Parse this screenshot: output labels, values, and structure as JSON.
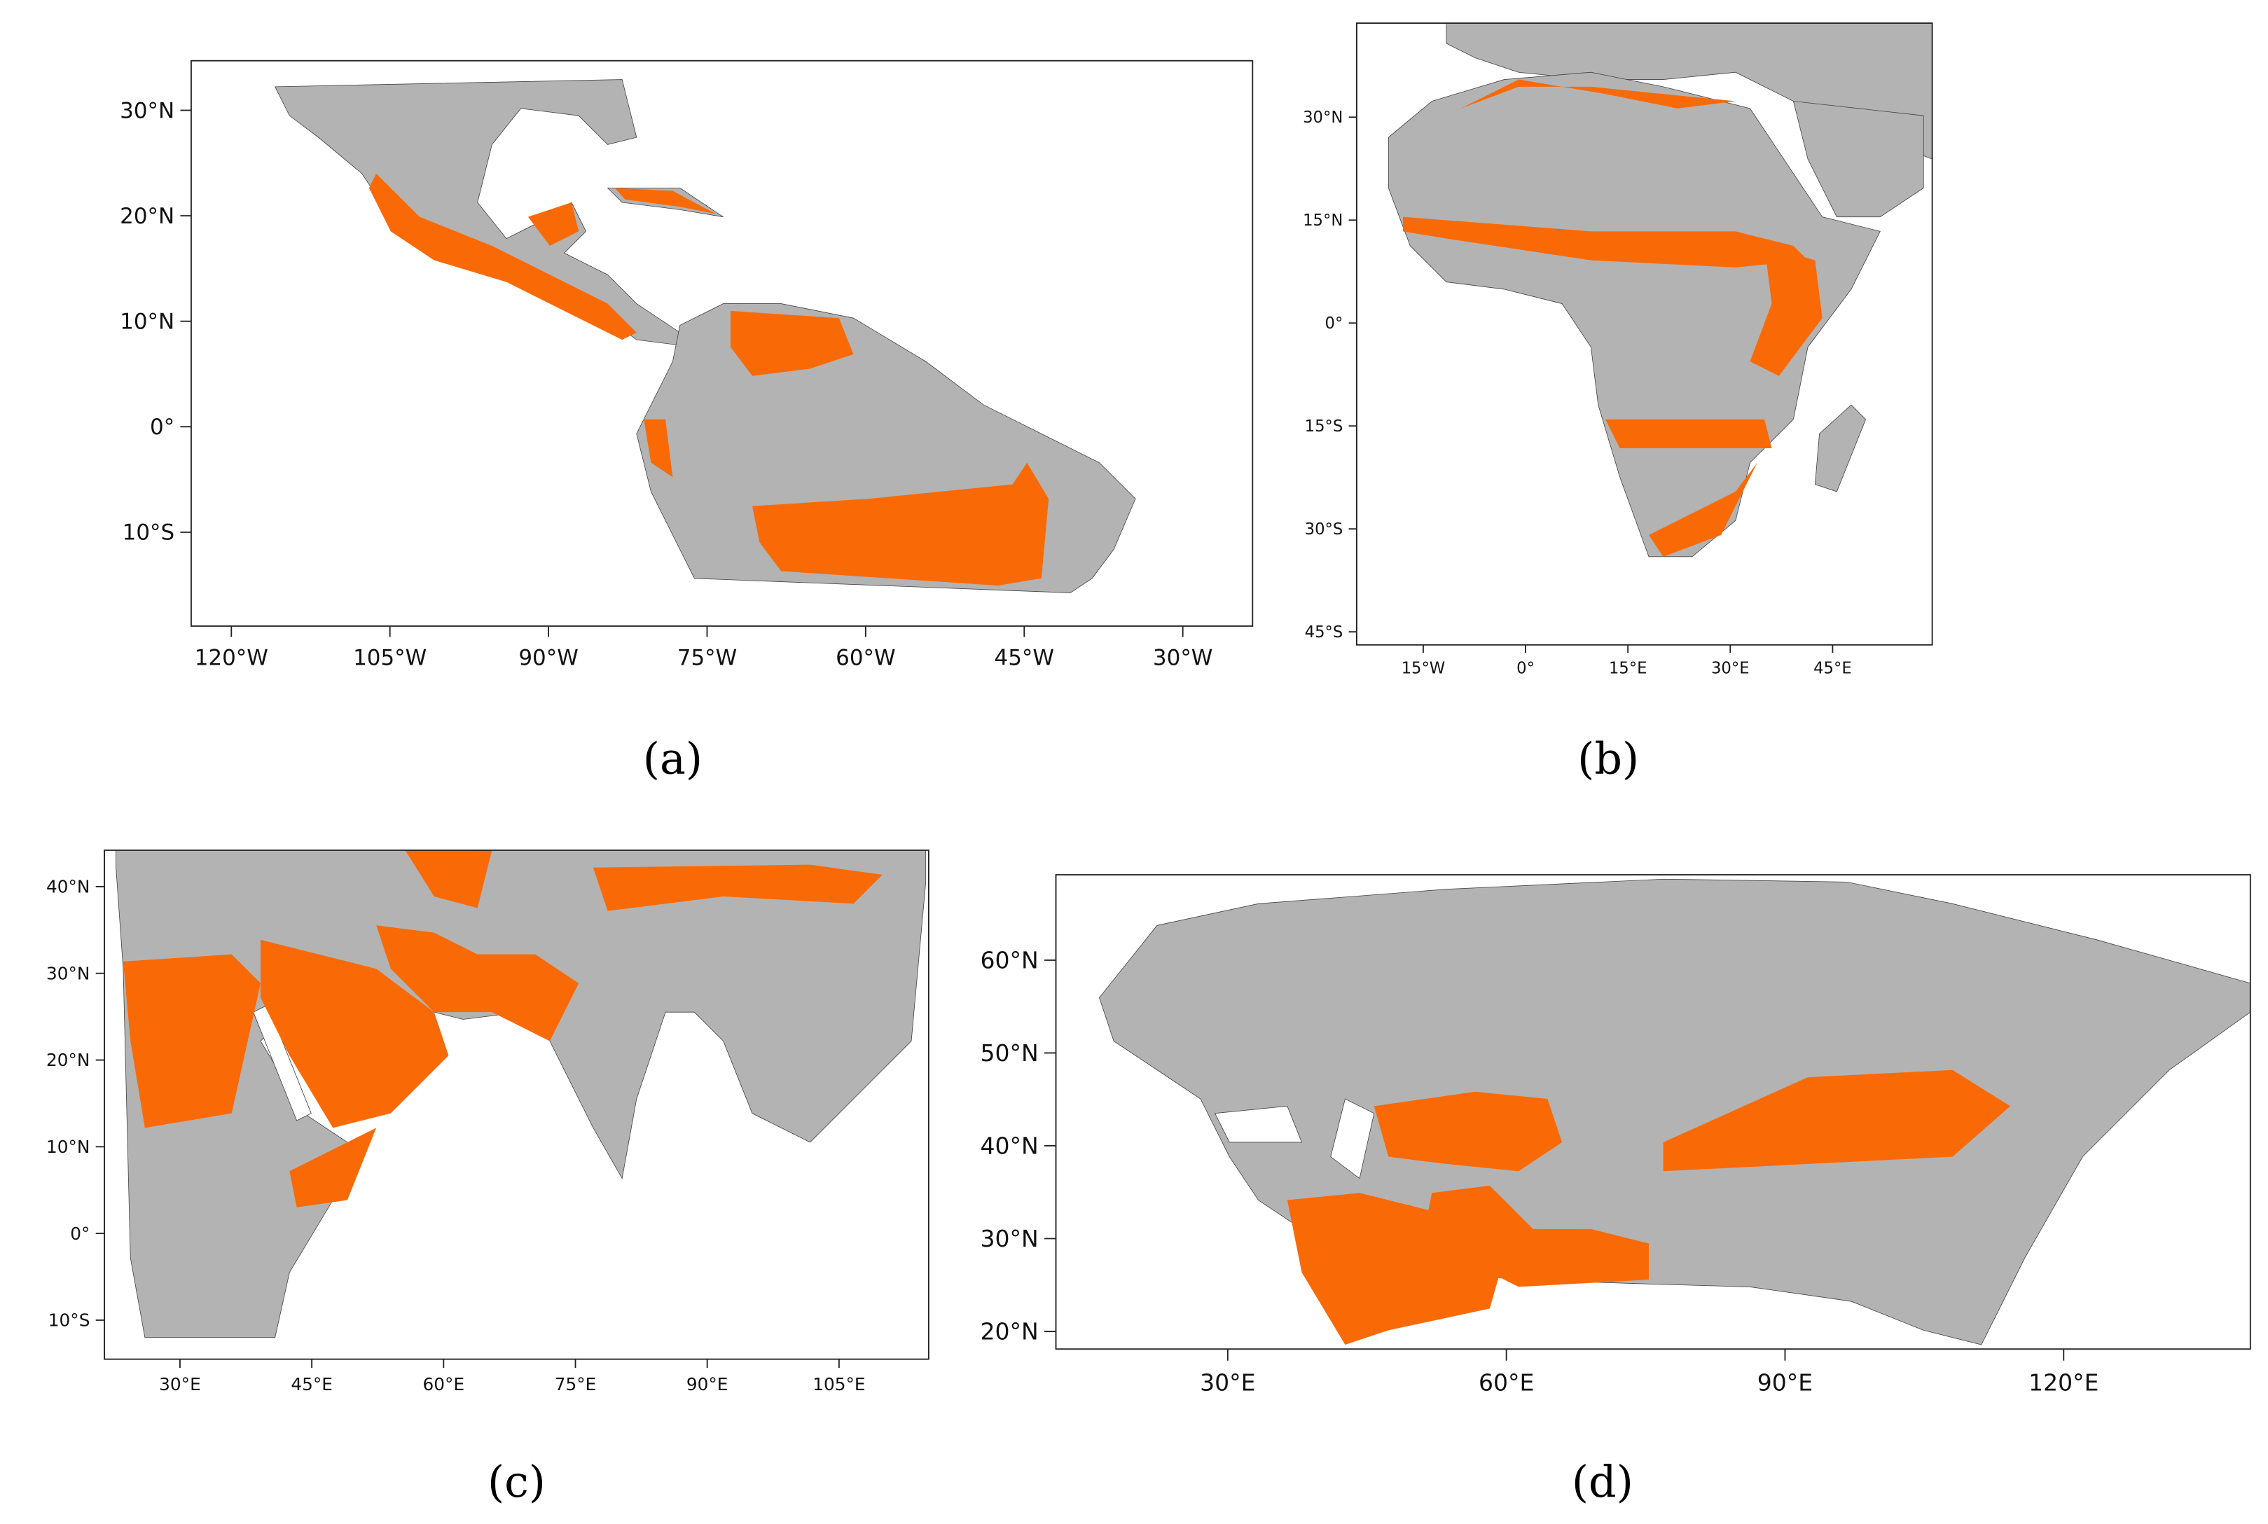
{
  "panels": [
    {
      "caption": "(a)",
      "xlim": [
        -123.8,
        -23.4
      ],
      "ylim": [
        -18.9,
        34.7
      ],
      "xticks": [
        {
          "value": -120,
          "label": "120°W"
        },
        {
          "value": -105,
          "label": "105°W"
        },
        {
          "value": -90,
          "label": "90°W"
        },
        {
          "value": -75,
          "label": "75°W"
        },
        {
          "value": -60,
          "label": "60°W"
        },
        {
          "value": -45,
          "label": "45°W"
        },
        {
          "value": -30,
          "label": "30°W"
        }
      ],
      "yticks": [
        {
          "value": 30,
          "label": "30°N"
        },
        {
          "value": 20,
          "label": "20°N"
        },
        {
          "value": 10,
          "label": "10°N"
        },
        {
          "value": 0,
          "label": "0°"
        },
        {
          "value": -10,
          "label": "10°S"
        }
      ]
    },
    {
      "caption": "(b)",
      "xlim": [
        -24.75,
        59.6
      ],
      "ylim": [
        -46.9,
        43.7
      ],
      "xticks": [
        {
          "value": -15,
          "label": "15°W"
        },
        {
          "value": 0,
          "label": "0°"
        },
        {
          "value": 15,
          "label": "15°E"
        },
        {
          "value": 30,
          "label": "30°E"
        },
        {
          "value": 45,
          "label": "45°E"
        }
      ],
      "yticks": [
        {
          "value": 30,
          "label": "30°N"
        },
        {
          "value": 15,
          "label": "15°N"
        },
        {
          "value": 0,
          "label": "0°"
        },
        {
          "value": -15,
          "label": "15°S"
        },
        {
          "value": -30,
          "label": "30°S"
        },
        {
          "value": -45,
          "label": "45°S"
        }
      ]
    },
    {
      "caption": "(c)",
      "xlim": [
        21.4,
        115.2
      ],
      "ylim": [
        -14.5,
        44.2
      ],
      "xticks": [
        {
          "value": 30,
          "label": "30°E"
        },
        {
          "value": 45,
          "label": "45°E"
        },
        {
          "value": 60,
          "label": "60°E"
        },
        {
          "value": 75,
          "label": "75°E"
        },
        {
          "value": 90,
          "label": "90°E"
        },
        {
          "value": 105,
          "label": "105°E"
        }
      ],
      "yticks": [
        {
          "value": 40,
          "label": "40°N"
        },
        {
          "value": 30,
          "label": "30°N"
        },
        {
          "value": 20,
          "label": "20°N"
        },
        {
          "value": 10,
          "label": "10°N"
        },
        {
          "value": 0,
          "label": "0°"
        },
        {
          "value": -10,
          "label": "10°S"
        }
      ]
    },
    {
      "caption": "(d)",
      "xlim": [
        11.5,
        140.1
      ],
      "ylim": [
        18.1,
        69.2
      ],
      "xticks": [
        {
          "value": 30,
          "label": "30°E"
        },
        {
          "value": 60,
          "label": "60°E"
        },
        {
          "value": 90,
          "label": "90°E"
        },
        {
          "value": 120,
          "label": "120°E"
        }
      ],
      "yticks": [
        {
          "value": 60,
          "label": "60°N"
        },
        {
          "value": 50,
          "label": "50°N"
        },
        {
          "value": 40,
          "label": "40°N"
        },
        {
          "value": 30,
          "label": "30°N"
        },
        {
          "value": 20,
          "label": "20°N"
        }
      ]
    }
  ]
}
